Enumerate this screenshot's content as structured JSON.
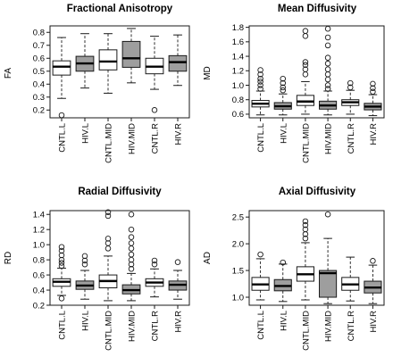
{
  "colors": {
    "cntl_fill": "#ffffff",
    "hiv_fill": "#9e9e9e",
    "stroke": "#1a1a1a"
  },
  "chart_data": [
    {
      "type": "box",
      "title": "Fractional Anisotropy",
      "ylabel": "FA",
      "ylim": [
        0.14,
        0.85
      ],
      "yticks": [
        0.2,
        0.3,
        0.4,
        0.5,
        0.6,
        0.7,
        0.8
      ],
      "grid": false,
      "groups": [
        {
          "label": "CNTL.L",
          "group": "CNTL",
          "whisker_low": 0.29,
          "q1": 0.47,
          "median": 0.535,
          "q3": 0.58,
          "whisker_high": 0.76,
          "outliers": [
            0.16
          ]
        },
        {
          "label": "HIV.L",
          "group": "HIV",
          "whisker_low": 0.37,
          "q1": 0.5,
          "median": 0.56,
          "q3": 0.615,
          "whisker_high": 0.79,
          "outliers": []
        },
        {
          "label": "CNTL.MID",
          "group": "CNTL",
          "whisker_low": 0.33,
          "q1": 0.51,
          "median": 0.575,
          "q3": 0.665,
          "whisker_high": 0.79,
          "outliers": []
        },
        {
          "label": "HIV.MID",
          "group": "HIV",
          "whisker_low": 0.41,
          "q1": 0.53,
          "median": 0.6,
          "q3": 0.73,
          "whisker_high": 0.83,
          "outliers": []
        },
        {
          "label": "CNTL.R",
          "group": "CNTL",
          "whisker_low": 0.36,
          "q1": 0.48,
          "median": 0.535,
          "q3": 0.6,
          "whisker_high": 0.77,
          "outliers": [
            0.2
          ]
        },
        {
          "label": "HIV.R",
          "group": "HIV",
          "whisker_low": 0.39,
          "q1": 0.5,
          "median": 0.57,
          "q3": 0.62,
          "whisker_high": 0.78,
          "outliers": []
        }
      ]
    },
    {
      "type": "box",
      "title": "Mean Diffusivity",
      "ylabel": "MD",
      "ylim": [
        0.55,
        1.82
      ],
      "yticks": [
        0.6,
        0.8,
        1.0,
        1.2,
        1.4,
        1.6,
        1.8
      ],
      "grid": false,
      "groups": [
        {
          "label": "CNTL.L",
          "group": "CNTL",
          "whisker_low": 0.59,
          "q1": 0.7,
          "median": 0.745,
          "q3": 0.79,
          "whisker_high": 0.92,
          "outliers": [
            0.95,
            1.0,
            1.05,
            1.09,
            1.15,
            1.21
          ]
        },
        {
          "label": "HIV.L",
          "group": "HIV",
          "whisker_low": 0.59,
          "q1": 0.67,
          "median": 0.71,
          "q3": 0.76,
          "whisker_high": 0.88,
          "outliers": [
            0.93,
            0.97,
            1.03,
            1.09
          ]
        },
        {
          "label": "CNTL.MID",
          "group": "CNTL",
          "whisker_low": 0.6,
          "q1": 0.72,
          "median": 0.775,
          "q3": 0.86,
          "whisker_high": 1.05,
          "outliers": [
            1.15,
            1.22,
            1.28,
            1.32,
            1.68,
            1.75
          ]
        },
        {
          "label": "HIV.MID",
          "group": "HIV",
          "whisker_low": 0.59,
          "q1": 0.67,
          "median": 0.72,
          "q3": 0.78,
          "whisker_high": 0.92,
          "outliers": [
            0.95,
            1.0,
            1.08,
            1.15,
            1.22,
            1.3,
            1.38,
            1.55,
            1.66,
            1.78
          ]
        },
        {
          "label": "CNTL.R",
          "group": "CNTL",
          "whisker_low": 0.6,
          "q1": 0.72,
          "median": 0.765,
          "q3": 0.8,
          "whisker_high": 0.93,
          "outliers": [
            0.97,
            1.03
          ]
        },
        {
          "label": "HIV.R",
          "group": "HIV",
          "whisker_low": 0.58,
          "q1": 0.66,
          "median": 0.705,
          "q3": 0.75,
          "whisker_high": 0.87,
          "outliers": [
            0.91,
            0.96,
            1.02
          ]
        }
      ]
    },
    {
      "type": "box",
      "title": "Radial Diffusivity",
      "ylabel": "RD",
      "ylim": [
        0.2,
        1.45
      ],
      "yticks": [
        0.2,
        0.4,
        0.6,
        0.8,
        1.0,
        1.2,
        1.4
      ],
      "grid": false,
      "groups": [
        {
          "label": "CNTL.L",
          "group": "CNTL",
          "whisker_low": 0.33,
          "q1": 0.45,
          "median": 0.51,
          "q3": 0.55,
          "whisker_high": 0.69,
          "outliers": [
            0.29,
            0.72,
            0.76,
            0.8,
            0.86,
            0.92,
            0.97
          ]
        },
        {
          "label": "HIV.L",
          "group": "HIV",
          "whisker_low": 0.28,
          "q1": 0.41,
          "median": 0.46,
          "q3": 0.52,
          "whisker_high": 0.66,
          "outliers": [
            0.74,
            0.79,
            0.85
          ]
        },
        {
          "label": "CNTL.MID",
          "group": "CNTL",
          "whisker_low": 0.26,
          "q1": 0.43,
          "median": 0.52,
          "q3": 0.6,
          "whisker_high": 0.85,
          "outliers": [
            0.95,
            1.02,
            1.08,
            1.38,
            1.43
          ]
        },
        {
          "label": "HIV.MID",
          "group": "HIV",
          "whisker_low": 0.26,
          "q1": 0.35,
          "median": 0.4,
          "q3": 0.47,
          "whisker_high": 0.62,
          "outliers": [
            0.68,
            0.74,
            0.8,
            0.87,
            0.95,
            1.02,
            1.1,
            1.2,
            1.4
          ]
        },
        {
          "label": "CNTL.R",
          "group": "CNTL",
          "whisker_low": 0.31,
          "q1": 0.45,
          "median": 0.5,
          "q3": 0.55,
          "whisker_high": 0.68,
          "outliers": [
            0.74,
            0.79
          ]
        },
        {
          "label": "HIV.R",
          "group": "HIV",
          "whisker_low": 0.28,
          "q1": 0.4,
          "median": 0.47,
          "q3": 0.52,
          "whisker_high": 0.66,
          "outliers": [
            0.77
          ]
        }
      ]
    },
    {
      "type": "box",
      "title": "Axial Diffusivity",
      "ylabel": "AD",
      "ylim": [
        0.85,
        2.62
      ],
      "yticks": [
        1.0,
        1.5,
        2.0,
        2.5
      ],
      "grid": false,
      "groups": [
        {
          "label": "CNTL.L",
          "group": "CNTL",
          "whisker_low": 0.95,
          "q1": 1.13,
          "median": 1.24,
          "q3": 1.37,
          "whisker_high": 1.72,
          "outliers": [
            1.8
          ]
        },
        {
          "label": "HIV.L",
          "group": "HIV",
          "whisker_low": 0.92,
          "q1": 1.12,
          "median": 1.21,
          "q3": 1.33,
          "whisker_high": 1.62,
          "outliers": [
            1.65
          ]
        },
        {
          "label": "CNTL.MID",
          "group": "CNTL",
          "whisker_low": 0.95,
          "q1": 1.3,
          "median": 1.43,
          "q3": 1.57,
          "whisker_high": 2.02,
          "outliers": [
            2.1,
            2.18,
            2.27,
            2.35,
            2.42
          ]
        },
        {
          "label": "HIV.MID",
          "group": "HIV",
          "whisker_low": 0.88,
          "q1": 1.0,
          "median": 1.45,
          "q3": 1.5,
          "whisker_high": 2.1,
          "outliers": [
            2.55
          ]
        },
        {
          "label": "CNTL.R",
          "group": "CNTL",
          "whisker_low": 0.93,
          "q1": 1.13,
          "median": 1.24,
          "q3": 1.37,
          "whisker_high": 1.75,
          "outliers": []
        },
        {
          "label": "HIV.R",
          "group": "HIV",
          "whisker_low": 0.88,
          "q1": 1.08,
          "median": 1.18,
          "q3": 1.3,
          "whisker_high": 1.6,
          "outliers": [
            1.68
          ]
        }
      ]
    }
  ]
}
